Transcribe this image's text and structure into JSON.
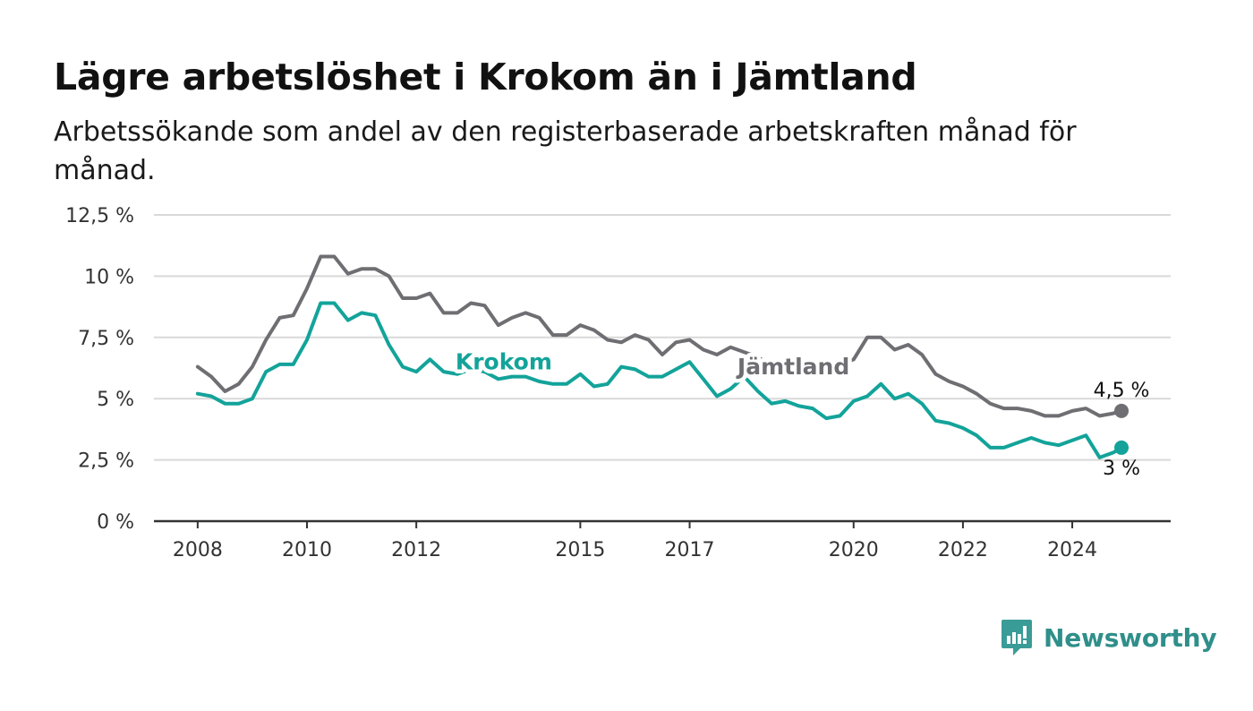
{
  "title": "Lägre arbetslöshet i Krokom än i Jämtland",
  "subtitle": "Arbetssökande som andel av den registerbaserade arbetskraften månad för månad.",
  "brand": "Newsworthy",
  "colors": {
    "krokom": "#13a39a",
    "jamtland": "#6e6e73",
    "grid": "#d9d9d9",
    "axis": "#333333"
  },
  "chart_data": {
    "type": "line",
    "title": "Lägre arbetslöshet i Krokom än i Jämtland",
    "subtitle": "Arbetssökande som andel av den registerbaserade arbetskraften månad för månad.",
    "ylim": [
      0,
      12.5
    ],
    "xlim": [
      2007.2,
      2025.8
    ],
    "y_ticks": [
      0,
      2.5,
      5,
      7.5,
      10,
      12.5
    ],
    "y_tick_labels": [
      "0 %",
      "2,5 %",
      "5 %",
      "7,5 %",
      "10 %",
      "12,5 %"
    ],
    "x_ticks": [
      2008,
      2010,
      2012,
      2015,
      2017,
      2020,
      2022,
      2024
    ],
    "x_tick_labels": [
      "2008",
      "2010",
      "2012",
      "2015",
      "2017",
      "2020",
      "2022",
      "2024"
    ],
    "grid": true,
    "series": [
      {
        "name": "Jämtland",
        "color": "#6e6e73",
        "end_label": "4,5 %",
        "points": [
          [
            2008.0,
            6.3
          ],
          [
            2008.25,
            5.9
          ],
          [
            2008.5,
            5.3
          ],
          [
            2008.75,
            5.6
          ],
          [
            2009.0,
            6.3
          ],
          [
            2009.25,
            7.4
          ],
          [
            2009.5,
            8.3
          ],
          [
            2009.75,
            8.4
          ],
          [
            2010.0,
            9.5
          ],
          [
            2010.25,
            10.8
          ],
          [
            2010.5,
            10.8
          ],
          [
            2010.75,
            10.1
          ],
          [
            2011.0,
            10.3
          ],
          [
            2011.25,
            10.3
          ],
          [
            2011.5,
            10.0
          ],
          [
            2011.75,
            9.1
          ],
          [
            2012.0,
            9.1
          ],
          [
            2012.25,
            9.3
          ],
          [
            2012.5,
            8.5
          ],
          [
            2012.75,
            8.5
          ],
          [
            2013.0,
            8.9
          ],
          [
            2013.25,
            8.8
          ],
          [
            2013.5,
            8.0
          ],
          [
            2013.75,
            8.3
          ],
          [
            2014.0,
            8.5
          ],
          [
            2014.25,
            8.3
          ],
          [
            2014.5,
            7.6
          ],
          [
            2014.75,
            7.6
          ],
          [
            2015.0,
            8.0
          ],
          [
            2015.25,
            7.8
          ],
          [
            2015.5,
            7.4
          ],
          [
            2015.75,
            7.3
          ],
          [
            2016.0,
            7.6
          ],
          [
            2016.25,
            7.4
          ],
          [
            2016.5,
            6.8
          ],
          [
            2016.75,
            7.3
          ],
          [
            2017.0,
            7.4
          ],
          [
            2017.25,
            7.0
          ],
          [
            2017.5,
            6.8
          ],
          [
            2017.75,
            7.1
          ],
          [
            2018.0,
            6.9
          ],
          [
            2018.25,
            6.7
          ],
          [
            2018.5,
            6.3
          ],
          [
            2018.75,
            6.2
          ],
          [
            2019.0,
            6.3
          ],
          [
            2019.25,
            6.4
          ],
          [
            2019.5,
            6.3
          ],
          [
            2019.75,
            6.4
          ],
          [
            2020.0,
            6.6
          ],
          [
            2020.25,
            7.5
          ],
          [
            2020.5,
            7.5
          ],
          [
            2020.75,
            7.0
          ],
          [
            2021.0,
            7.2
          ],
          [
            2021.25,
            6.8
          ],
          [
            2021.5,
            6.0
          ],
          [
            2021.75,
            5.7
          ],
          [
            2022.0,
            5.5
          ],
          [
            2022.25,
            5.2
          ],
          [
            2022.5,
            4.8
          ],
          [
            2022.75,
            4.6
          ],
          [
            2023.0,
            4.6
          ],
          [
            2023.25,
            4.5
          ],
          [
            2023.5,
            4.3
          ],
          [
            2023.75,
            4.3
          ],
          [
            2024.0,
            4.5
          ],
          [
            2024.25,
            4.6
          ],
          [
            2024.5,
            4.3
          ],
          [
            2024.75,
            4.4
          ],
          [
            2024.9,
            4.5
          ]
        ]
      },
      {
        "name": "Krokom",
        "color": "#13a39a",
        "end_label": "3 %",
        "points": [
          [
            2008.0,
            5.2
          ],
          [
            2008.25,
            5.1
          ],
          [
            2008.5,
            4.8
          ],
          [
            2008.75,
            4.8
          ],
          [
            2009.0,
            5.0
          ],
          [
            2009.25,
            6.1
          ],
          [
            2009.5,
            6.4
          ],
          [
            2009.75,
            6.4
          ],
          [
            2010.0,
            7.4
          ],
          [
            2010.25,
            8.9
          ],
          [
            2010.5,
            8.9
          ],
          [
            2010.75,
            8.2
          ],
          [
            2011.0,
            8.5
          ],
          [
            2011.25,
            8.4
          ],
          [
            2011.5,
            7.2
          ],
          [
            2011.75,
            6.3
          ],
          [
            2012.0,
            6.1
          ],
          [
            2012.25,
            6.6
          ],
          [
            2012.5,
            6.1
          ],
          [
            2012.75,
            6.0
          ],
          [
            2013.0,
            6.2
          ],
          [
            2013.25,
            6.1
          ],
          [
            2013.5,
            5.8
          ],
          [
            2013.75,
            5.9
          ],
          [
            2014.0,
            5.9
          ],
          [
            2014.25,
            5.7
          ],
          [
            2014.5,
            5.6
          ],
          [
            2014.75,
            5.6
          ],
          [
            2015.0,
            6.0
          ],
          [
            2015.25,
            5.5
          ],
          [
            2015.5,
            5.6
          ],
          [
            2015.75,
            6.3
          ],
          [
            2016.0,
            6.2
          ],
          [
            2016.25,
            5.9
          ],
          [
            2016.5,
            5.9
          ],
          [
            2016.75,
            6.2
          ],
          [
            2017.0,
            6.5
          ],
          [
            2017.25,
            5.8
          ],
          [
            2017.5,
            5.1
          ],
          [
            2017.75,
            5.4
          ],
          [
            2018.0,
            5.9
          ],
          [
            2018.25,
            5.3
          ],
          [
            2018.5,
            4.8
          ],
          [
            2018.75,
            4.9
          ],
          [
            2019.0,
            4.7
          ],
          [
            2019.25,
            4.6
          ],
          [
            2019.5,
            4.2
          ],
          [
            2019.75,
            4.3
          ],
          [
            2020.0,
            4.9
          ],
          [
            2020.25,
            5.1
          ],
          [
            2020.5,
            5.6
          ],
          [
            2020.75,
            5.0
          ],
          [
            2021.0,
            5.2
          ],
          [
            2021.25,
            4.8
          ],
          [
            2021.5,
            4.1
          ],
          [
            2021.75,
            4.0
          ],
          [
            2022.0,
            3.8
          ],
          [
            2022.25,
            3.5
          ],
          [
            2022.5,
            3.0
          ],
          [
            2022.75,
            3.0
          ],
          [
            2023.0,
            3.2
          ],
          [
            2023.25,
            3.4
          ],
          [
            2023.5,
            3.2
          ],
          [
            2023.75,
            3.1
          ],
          [
            2024.0,
            3.3
          ],
          [
            2024.25,
            3.5
          ],
          [
            2024.5,
            2.6
          ],
          [
            2024.75,
            2.8
          ],
          [
            2024.9,
            3.0
          ]
        ]
      }
    ],
    "inline_labels": [
      {
        "series": "Krokom",
        "text": "Krokom",
        "x": 2013.6,
        "y": 6.2
      },
      {
        "series": "Jämtland",
        "text": "Jämtland",
        "x": 2018.9,
        "y": 6.0
      }
    ]
  }
}
